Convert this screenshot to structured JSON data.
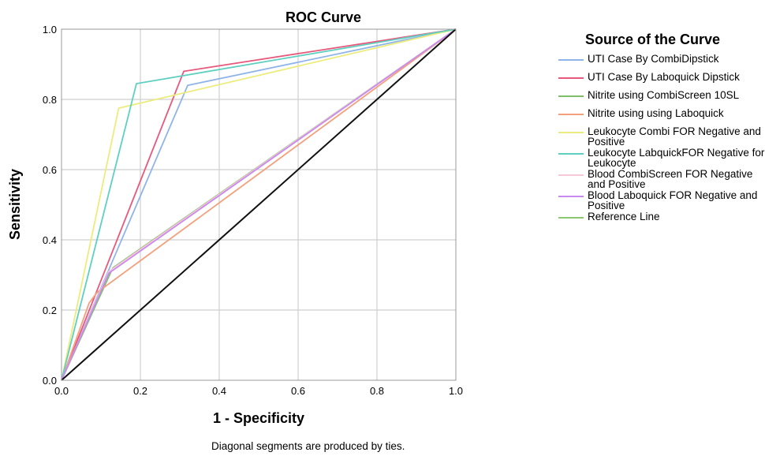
{
  "chart_data": {
    "type": "line",
    "title": "ROC Curve",
    "xlabel": "1 - Specificity",
    "ylabel": "Sensitivity",
    "xlim": [
      0,
      1
    ],
    "ylim": [
      0,
      1
    ],
    "xticks": [
      "0.0",
      "0.2",
      "0.4",
      "0.6",
      "0.8",
      "1.0"
    ],
    "yticks": [
      "0.0",
      "0.2",
      "0.4",
      "0.6",
      "0.8",
      "1.0"
    ],
    "grid": true,
    "legend_title": "Source of the Curve",
    "legend_position": "right",
    "footnote": "Diagonal segments are produced by ties.",
    "series": [
      {
        "name": "UTI Case By CombiDipstick",
        "color": "#8fb4ea",
        "points": [
          [
            0,
            0
          ],
          [
            0.32,
            0.84
          ],
          [
            1,
            1
          ]
        ]
      },
      {
        "name": "UTI Case By Laboquick Dipstick",
        "color": "#e8587c",
        "points": [
          [
            0,
            0
          ],
          [
            0.31,
            0.88
          ],
          [
            1,
            1
          ]
        ]
      },
      {
        "name": "Nitrite using CombiScreen 10SL",
        "color": "#7fbf6a",
        "points": [
          [
            0,
            0
          ],
          [
            0.13,
            0.32
          ],
          [
            1,
            1
          ]
        ]
      },
      {
        "name": "Nitrite using using Laboquick",
        "color": "#f4a07c",
        "points": [
          [
            0,
            0
          ],
          [
            0.07,
            0.22
          ],
          [
            0.09,
            0.25
          ],
          [
            1,
            1
          ]
        ]
      },
      {
        "name": "Leukocyte Combi FOR Negative and Positive",
        "color": "#ecec7c",
        "points": [
          [
            0,
            0
          ],
          [
            0.145,
            0.775
          ],
          [
            1,
            1
          ]
        ]
      },
      {
        "name": "Leukocyte LabquickFOR Negative for Leukocyte",
        "color": "#5fd0c0",
        "points": [
          [
            0,
            0
          ],
          [
            0.19,
            0.845
          ],
          [
            1,
            1
          ]
        ]
      },
      {
        "name": "Blood CombiScreen FOR Negative and Positive",
        "color": "#f7c8d8",
        "points": [
          [
            0,
            0
          ],
          [
            0.12,
            0.31
          ],
          [
            1,
            1
          ]
        ]
      },
      {
        "name": "Blood Laboquick FOR Negative and Positive",
        "color": "#c98af0",
        "points": [
          [
            0,
            0
          ],
          [
            0.12,
            0.305
          ],
          [
            1,
            1
          ]
        ]
      },
      {
        "name": "Reference Line",
        "color": "#8cc870",
        "legend_color": "#8cc870",
        "line_color": "#111111",
        "points": [
          [
            0,
            0
          ],
          [
            1,
            1
          ]
        ]
      }
    ]
  }
}
